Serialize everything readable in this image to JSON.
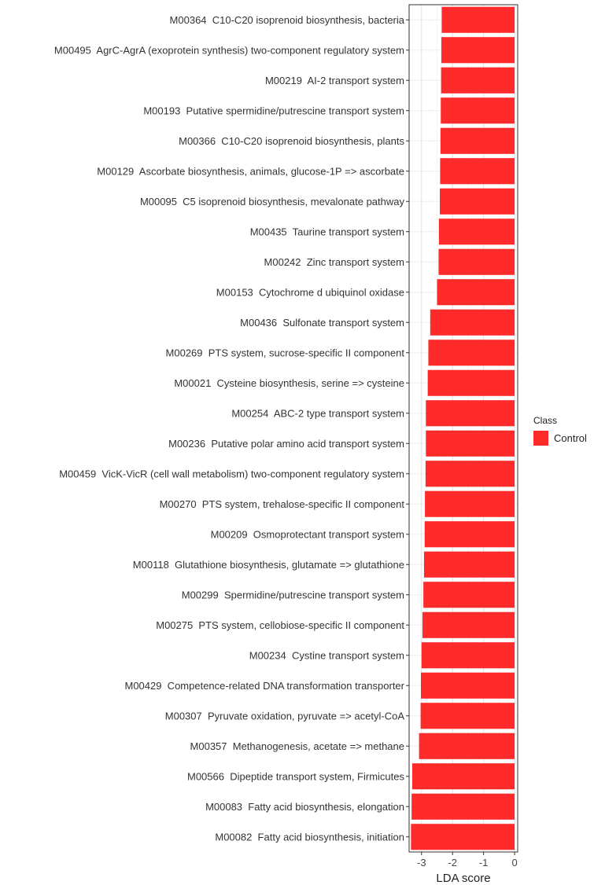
{
  "chart_data": {
    "type": "bar",
    "orientation": "horizontal",
    "xlabel": "LDA score",
    "ylabel": "",
    "xlim": [
      -3.4,
      0.1
    ],
    "xticks": [
      -3,
      -2,
      -1,
      0
    ],
    "xtick_labels": [
      "-3",
      "-2",
      "-1",
      "0"
    ],
    "grid": true,
    "legend": {
      "title": "Class",
      "entries": [
        "Control"
      ],
      "placement": "right"
    },
    "bar_color": "#ff2a2a",
    "series": [
      {
        "name": "Control",
        "categories": [
          "M00364  C10-C20 isoprenoid biosynthesis, bacteria",
          "M00495  AgrC-AgrA (exoprotein synthesis) two-component regulatory system",
          "M00219  AI-2 transport system",
          "M00193  Putative spermidine/putrescine transport system",
          "M00366  C10-C20 isoprenoid biosynthesis, plants",
          "M00129  Ascorbate biosynthesis, animals, glucose-1P => ascorbate",
          "M00095  C5 isoprenoid biosynthesis, mevalonate pathway",
          "M00435  Taurine transport system",
          "M00242  Zinc transport system",
          "M00153  Cytochrome d ubiquinol oxidase",
          "M00436  Sulfonate transport system",
          "M00269  PTS system, sucrose-specific II component",
          "M00021  Cysteine biosynthesis, serine => cysteine",
          "M00254  ABC-2 type transport system",
          "M00236  Putative polar amino acid transport system",
          "M00459  VicK-VicR (cell wall metabolism) two-component regulatory system",
          "M00270  PTS system, trehalose-specific II component",
          "M00209  Osmoprotectant transport system",
          "M00118  Glutathione biosynthesis, glutamate => glutathione",
          "M00299  Spermidine/putrescine transport system",
          "M00275  PTS system, cellobiose-specific II component",
          "M00234  Cystine transport system",
          "M00429  Competence-related DNA transformation transporter",
          "M00307  Pyruvate oxidation, pyruvate => acetyl-CoA",
          "M00357  Methanogenesis, acetate => methane",
          "M00566  Dipeptide transport system, Firmicutes",
          "M00083  Fatty acid biosynthesis, elongation",
          "M00082  Fatty acid biosynthesis, initiation"
        ],
        "values": [
          -2.35,
          -2.36,
          -2.37,
          -2.38,
          -2.39,
          -2.4,
          -2.41,
          -2.44,
          -2.45,
          -2.5,
          -2.72,
          -2.78,
          -2.8,
          -2.86,
          -2.86,
          -2.87,
          -2.89,
          -2.9,
          -2.92,
          -2.94,
          -2.97,
          -3.0,
          -3.02,
          -3.03,
          -3.08,
          -3.3,
          -3.32,
          -3.34
        ]
      }
    ]
  }
}
